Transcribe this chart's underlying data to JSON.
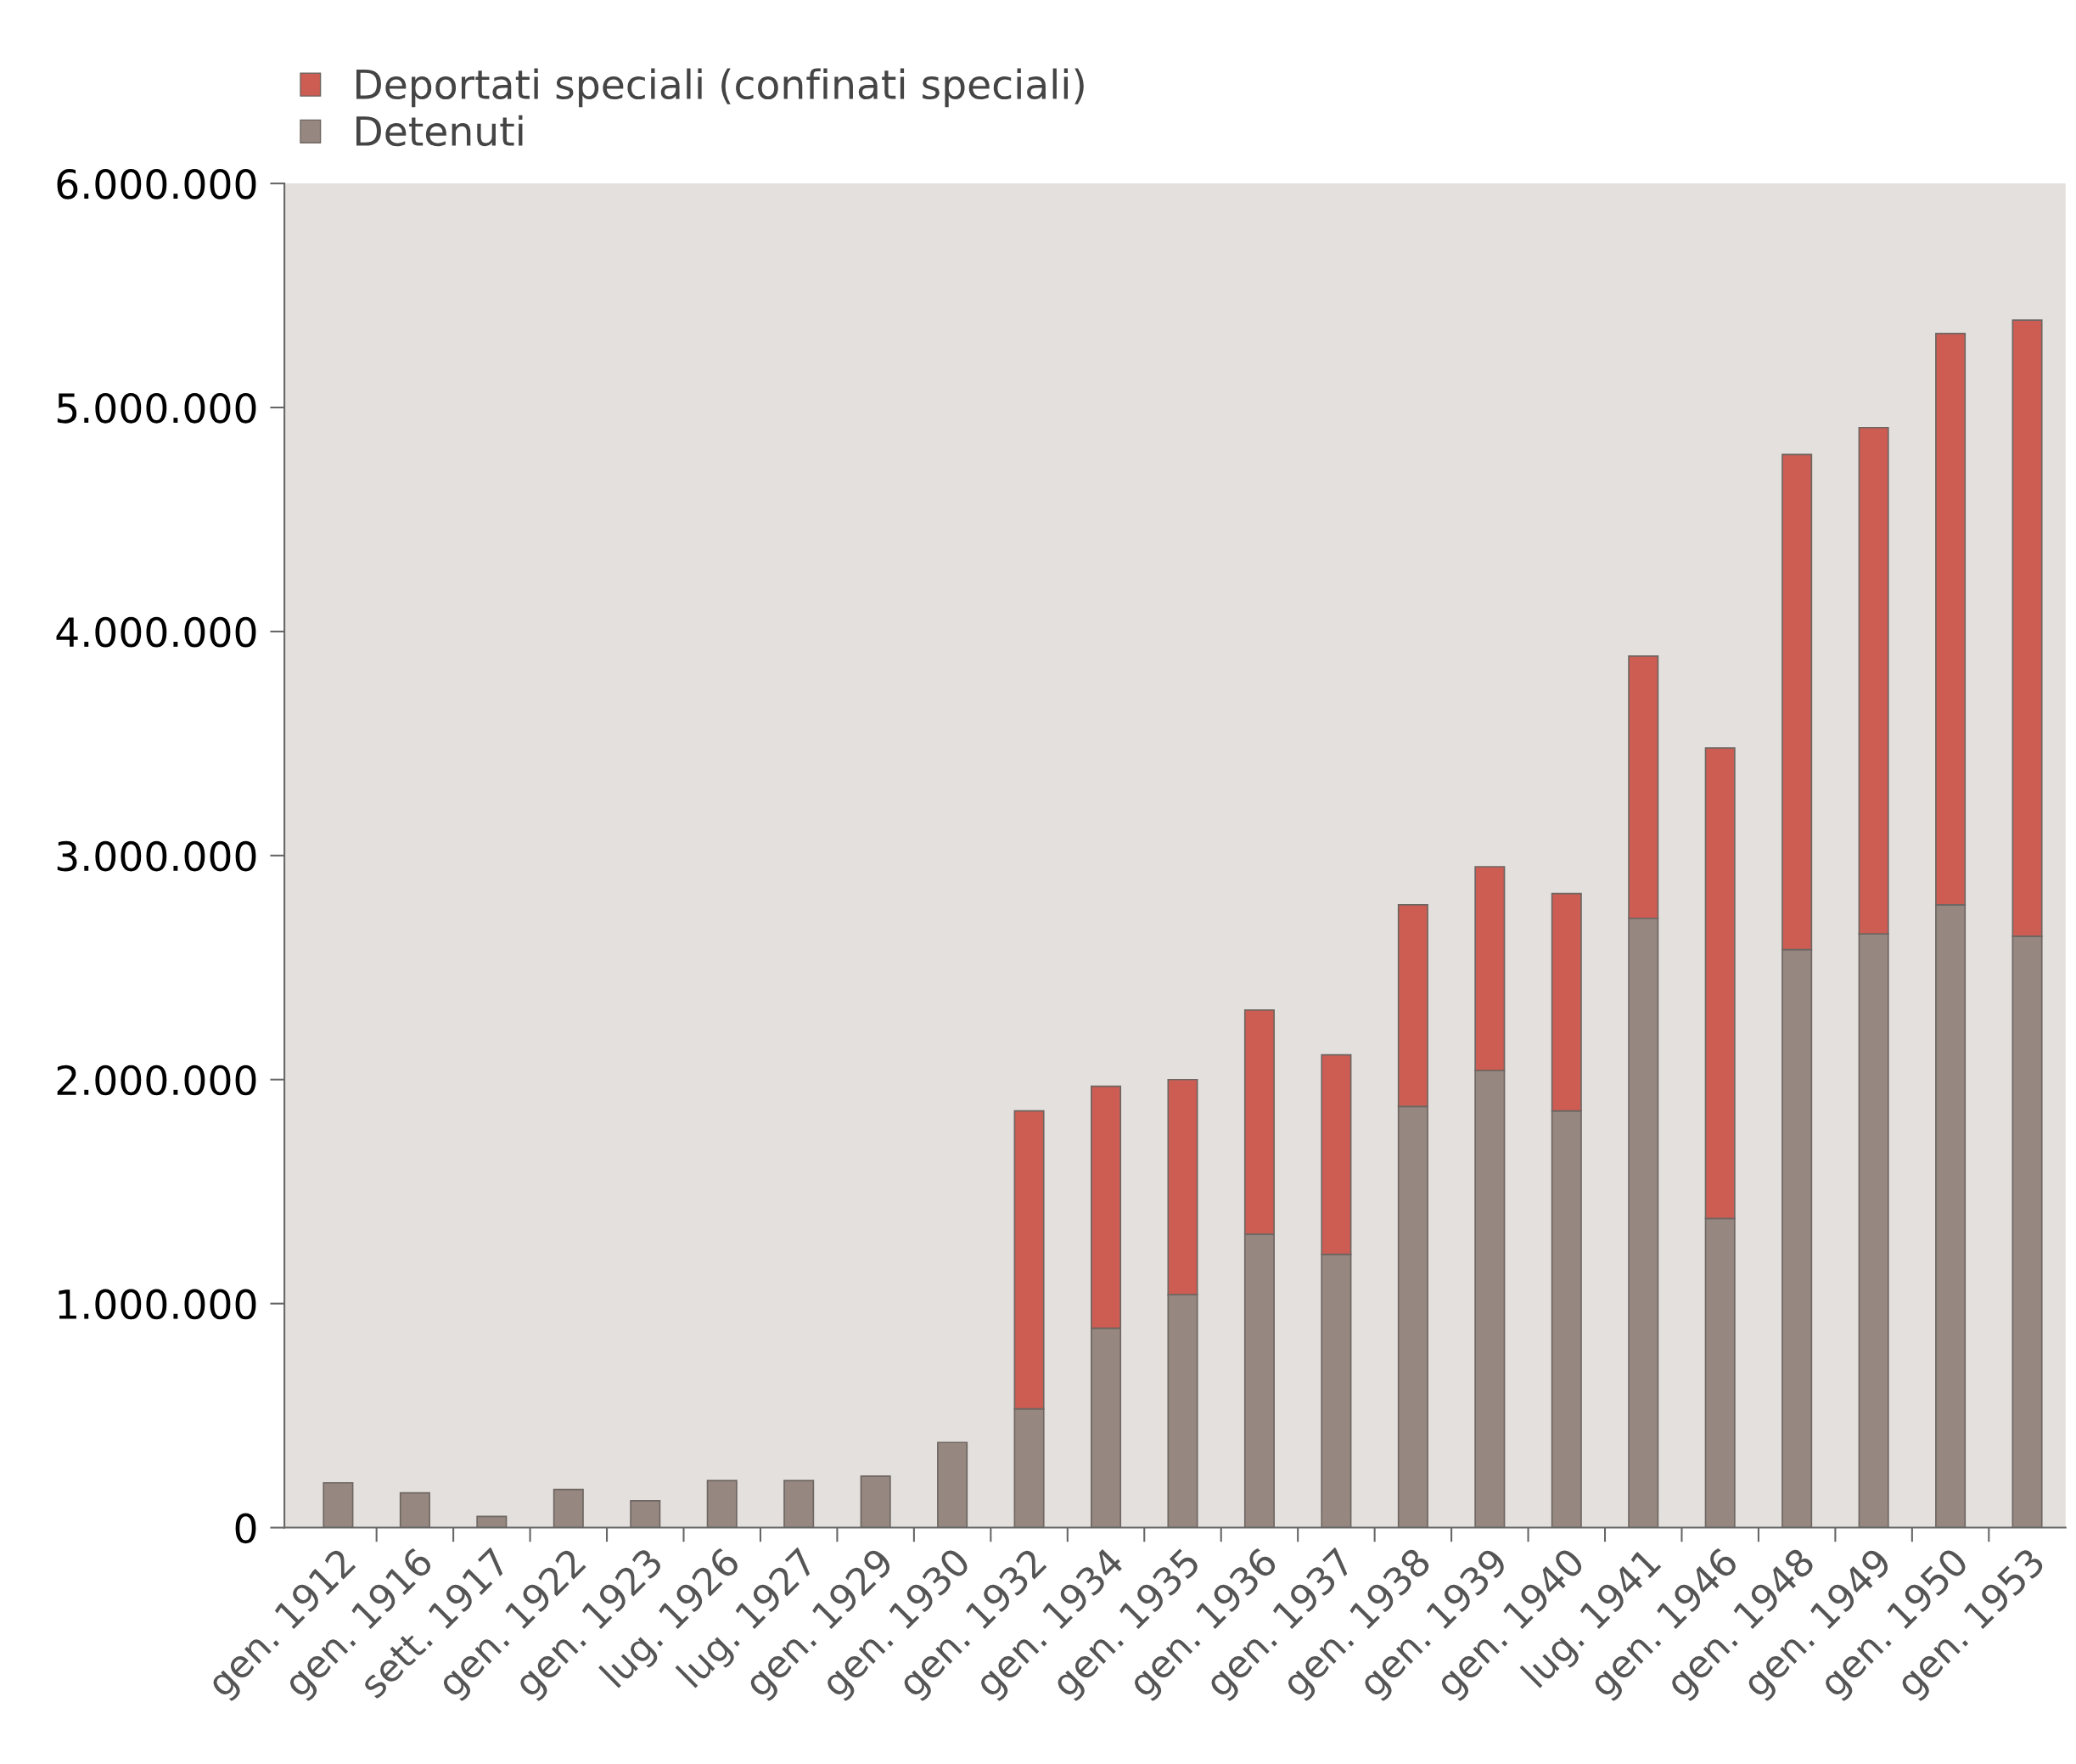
{
  "chart_data": {
    "type": "bar",
    "stacked": true,
    "categories": [
      "gen. 1912",
      "gen. 1916",
      "sett. 1917",
      "gen. 1922",
      "gen. 1923",
      "lug. 1926",
      "lug. 1927",
      "gen. 1929",
      "gen. 1930",
      "gen. 1932",
      "gen. 1934",
      "gen. 1935",
      "gen. 1936",
      "gen. 1937",
      "gen. 1938",
      "gen. 1939",
      "gen. 1940",
      "lug. 1941",
      "gen. 1946",
      "gen. 1948",
      "gen. 1949",
      "gen. 1950",
      "gen. 1953"
    ],
    "series": [
      {
        "name": "Detenuti",
        "color": "#968880",
        "values": [
          200000,
          155000,
          50000,
          170000,
          120000,
          210000,
          210000,
          230000,
          380000,
          530000,
          890000,
          1040000,
          1310000,
          1220000,
          1880000,
          2040000,
          1860000,
          2720000,
          1380000,
          2580000,
          2650000,
          2780000,
          2640000
        ]
      },
      {
        "name": "Deportati speciali (confinati speciali)",
        "color": "#cd5c53",
        "values": [
          null,
          null,
          null,
          null,
          null,
          null,
          null,
          null,
          null,
          1330000,
          1080000,
          960000,
          1000000,
          890000,
          900000,
          910000,
          970000,
          1170000,
          2100000,
          2210000,
          2260000,
          2550000,
          2750000
        ]
      }
    ],
    "ylim": [
      0,
      6000000
    ],
    "yticks": [
      {
        "value": 0,
        "label": "0"
      },
      {
        "value": 1000000,
        "label": "1.000.000"
      },
      {
        "value": 2000000,
        "label": "2.000.000"
      },
      {
        "value": 3000000,
        "label": "3.000.000"
      },
      {
        "value": 4000000,
        "label": "4.000.000"
      },
      {
        "value": 5000000,
        "label": "5.000.000"
      },
      {
        "value": 6000000,
        "label": "6.000.000"
      }
    ],
    "grid": false,
    "legend": "top left"
  }
}
